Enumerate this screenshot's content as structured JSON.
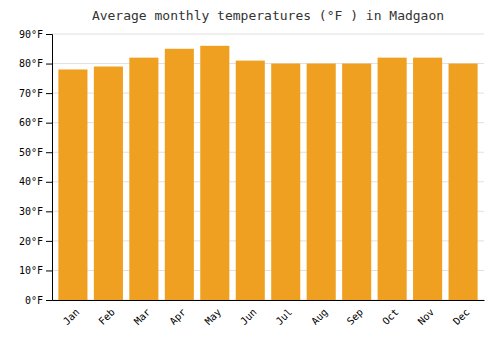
{
  "chart_data": {
    "type": "bar",
    "title": "Average monthly temperatures (°F ) in Madgaon",
    "categories": [
      "Jan",
      "Feb",
      "Mar",
      "Apr",
      "May",
      "Jun",
      "Jul",
      "Aug",
      "Sep",
      "Oct",
      "Nov",
      "Dec"
    ],
    "values": [
      78,
      79,
      82,
      85,
      86,
      81,
      80,
      80,
      80,
      82,
      82,
      80
    ],
    "color": "#F0A020",
    "ylim": [
      0,
      90
    ],
    "yticks": [
      {
        "value": 0,
        "label": "0°F"
      },
      {
        "value": 10,
        "label": "10°F"
      },
      {
        "value": 20,
        "label": "20°F"
      },
      {
        "value": 30,
        "label": "30°F"
      },
      {
        "value": 40,
        "label": "40°F"
      },
      {
        "value": 50,
        "label": "50°F"
      },
      {
        "value": 60,
        "label": "60°F"
      },
      {
        "value": 70,
        "label": "70°F"
      },
      {
        "value": 80,
        "label": "80°F"
      },
      {
        "value": 90,
        "label": "90°F"
      }
    ],
    "grid": true
  }
}
